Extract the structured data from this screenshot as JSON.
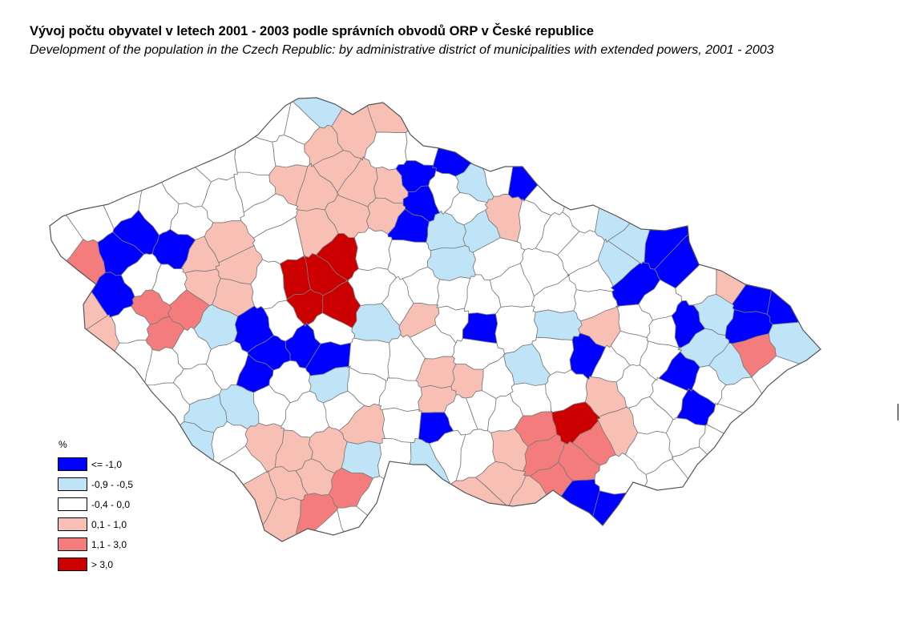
{
  "title": "Vývoj počtu obyvatel v letech 2001 - 2003 podle správních obvodů ORP v České republice",
  "subtitle": "Development of the population in the Czech Republic: by administrative district of municipalities with extended powers, 2001 - 2003",
  "legend": {
    "title": "%",
    "items": [
      {
        "label": "<= -1,0",
        "color": "#0000ff"
      },
      {
        "label": "-0,9 - -0,5",
        "color": "#bfe4f7"
      },
      {
        "label": "-0,4 - 0,0",
        "color": "#ffffff"
      },
      {
        "label": "0,1 - 1,0",
        "color": "#f8c0b4"
      },
      {
        "label": "1,1 - 3,0",
        "color": "#f47c7c"
      },
      {
        "label": "> 3,0",
        "color": "#cc0000"
      }
    ]
  },
  "colors": {
    "border": "#7a7a7a",
    "c0": "#0000ff",
    "c1": "#bfe4f7",
    "c2": "#ffffff",
    "c3": "#f8c0b4",
    "c4": "#f47c7c",
    "c5": "#cc0000"
  }
}
